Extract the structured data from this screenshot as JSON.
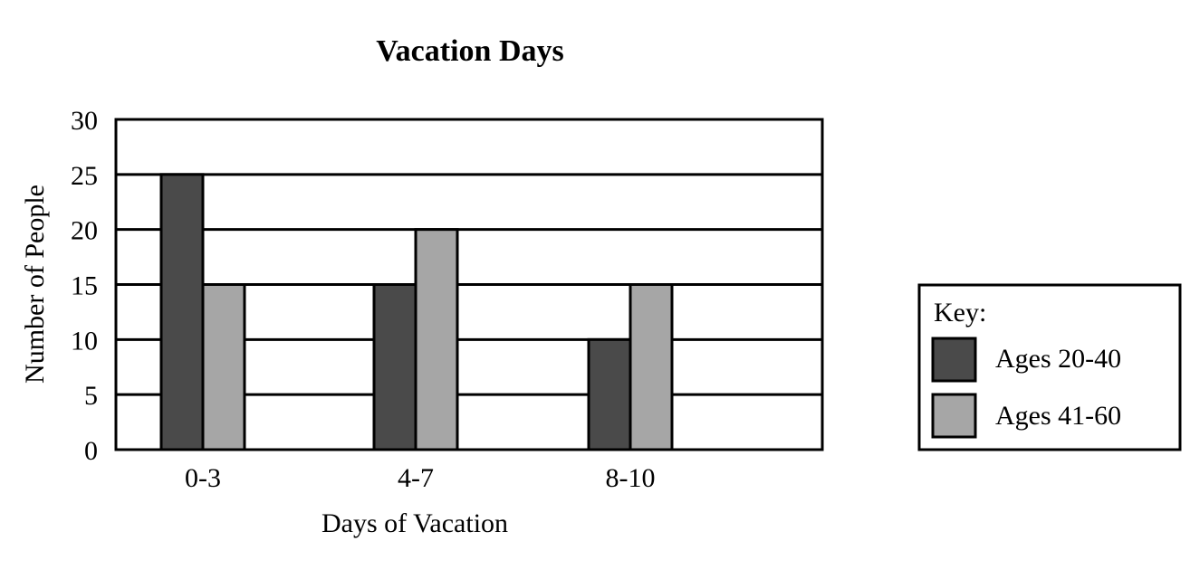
{
  "chart_data": {
    "type": "bar",
    "title": "Vacation Days",
    "xlabel": "Days of Vacation",
    "ylabel": "Number of People",
    "categories": [
      "0-3",
      "4-7",
      "8-10"
    ],
    "series": [
      {
        "name": "Ages 20-40",
        "values": [
          25,
          15,
          10
        ],
        "color": "#4a4a4a"
      },
      {
        "name": "Ages 41-60",
        "values": [
          15,
          20,
          15
        ],
        "color": "#a6a6a6"
      }
    ],
    "ylim": [
      0,
      30
    ],
    "yticks": [
      0,
      5,
      10,
      15,
      20,
      25,
      30
    ],
    "grid": true,
    "legend": {
      "title": "Key:",
      "placement": "right"
    }
  }
}
